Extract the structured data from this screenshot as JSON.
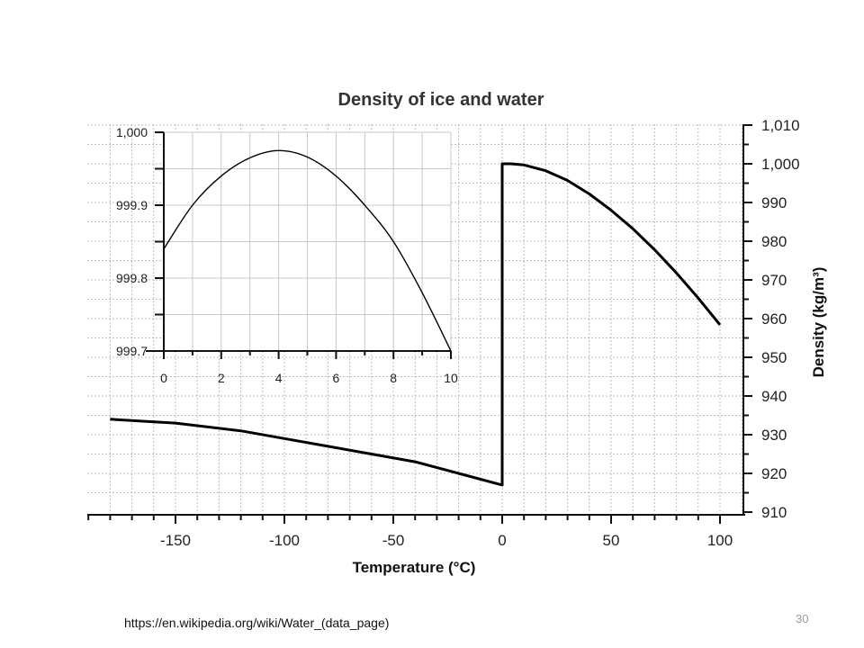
{
  "chart_data": [
    {
      "type": "line",
      "title": "Density of ice and water",
      "xlabel": "Temperature (°C)",
      "ylabel": "Density (kg/m³)",
      "xlim": [
        -190,
        110
      ],
      "ylim": [
        910,
        1010
      ],
      "x_ticks": [
        {
          "value": -150,
          "label": "-150"
        },
        {
          "value": -100,
          "label": "-100"
        },
        {
          "value": -50,
          "label": "-50"
        },
        {
          "value": 0,
          "label": "0"
        },
        {
          "value": 50,
          "label": "50"
        },
        {
          "value": 100,
          "label": "100"
        }
      ],
      "y_ticks": [
        {
          "value": 910,
          "label": "910"
        },
        {
          "value": 920,
          "label": "920"
        },
        {
          "value": 930,
          "label": "930"
        },
        {
          "value": 940,
          "label": "940"
        },
        {
          "value": 950,
          "label": "950"
        },
        {
          "value": 960,
          "label": "960"
        },
        {
          "value": 970,
          "label": "970"
        },
        {
          "value": 980,
          "label": "980"
        },
        {
          "value": 990,
          "label": "990"
        },
        {
          "value": 1000,
          "label": "1,000"
        },
        {
          "value": 1010,
          "label": "1,010"
        }
      ],
      "grid": true,
      "series": [
        {
          "x": [
            -180,
            -150,
            -120,
            -100,
            -80,
            -60,
            -40,
            -20,
            0,
            0,
            4,
            10,
            20,
            30,
            40,
            50,
            60,
            70,
            80,
            90,
            100
          ],
          "y": [
            934.0,
            933.0,
            931.0,
            929.0,
            927.0,
            925.0,
            923.0,
            920.0,
            917.0,
            1000.0,
            1000.0,
            999.7,
            998.2,
            995.7,
            992.2,
            988.0,
            983.2,
            977.8,
            971.8,
            965.3,
            958.4
          ]
        }
      ]
    },
    {
      "type": "line",
      "title": "",
      "xlabel": "",
      "ylabel": "",
      "xlim": [
        0,
        10
      ],
      "ylim": [
        999.7,
        1000.0
      ],
      "x_ticks": [
        {
          "value": 0,
          "label": "0"
        },
        {
          "value": 2,
          "label": "2"
        },
        {
          "value": 4,
          "label": "4"
        },
        {
          "value": 6,
          "label": "6"
        },
        {
          "value": 8,
          "label": "8"
        },
        {
          "value": 10,
          "label": "10"
        }
      ],
      "y_ticks": [
        {
          "value": 999.7,
          "label": "999.7"
        },
        {
          "value": 999.8,
          "label": "999.8"
        },
        {
          "value": 999.9,
          "label": "999.9"
        },
        {
          "value": 1000.0,
          "label": "1,000"
        }
      ],
      "grid": true,
      "series": [
        {
          "x": [
            0,
            1,
            2,
            3,
            4,
            5,
            6,
            7,
            8,
            9,
            10
          ],
          "y": [
            999.84,
            999.9,
            999.94,
            999.965,
            999.975,
            999.966,
            999.94,
            999.9,
            999.85,
            999.78,
            999.7
          ]
        }
      ]
    }
  ],
  "footer": {
    "source": "https://en.wikipedia.org/wiki/Water_(data_page)",
    "page_number": "30"
  },
  "colors": {
    "line": "#000000",
    "grid": "#bdbdbd"
  }
}
